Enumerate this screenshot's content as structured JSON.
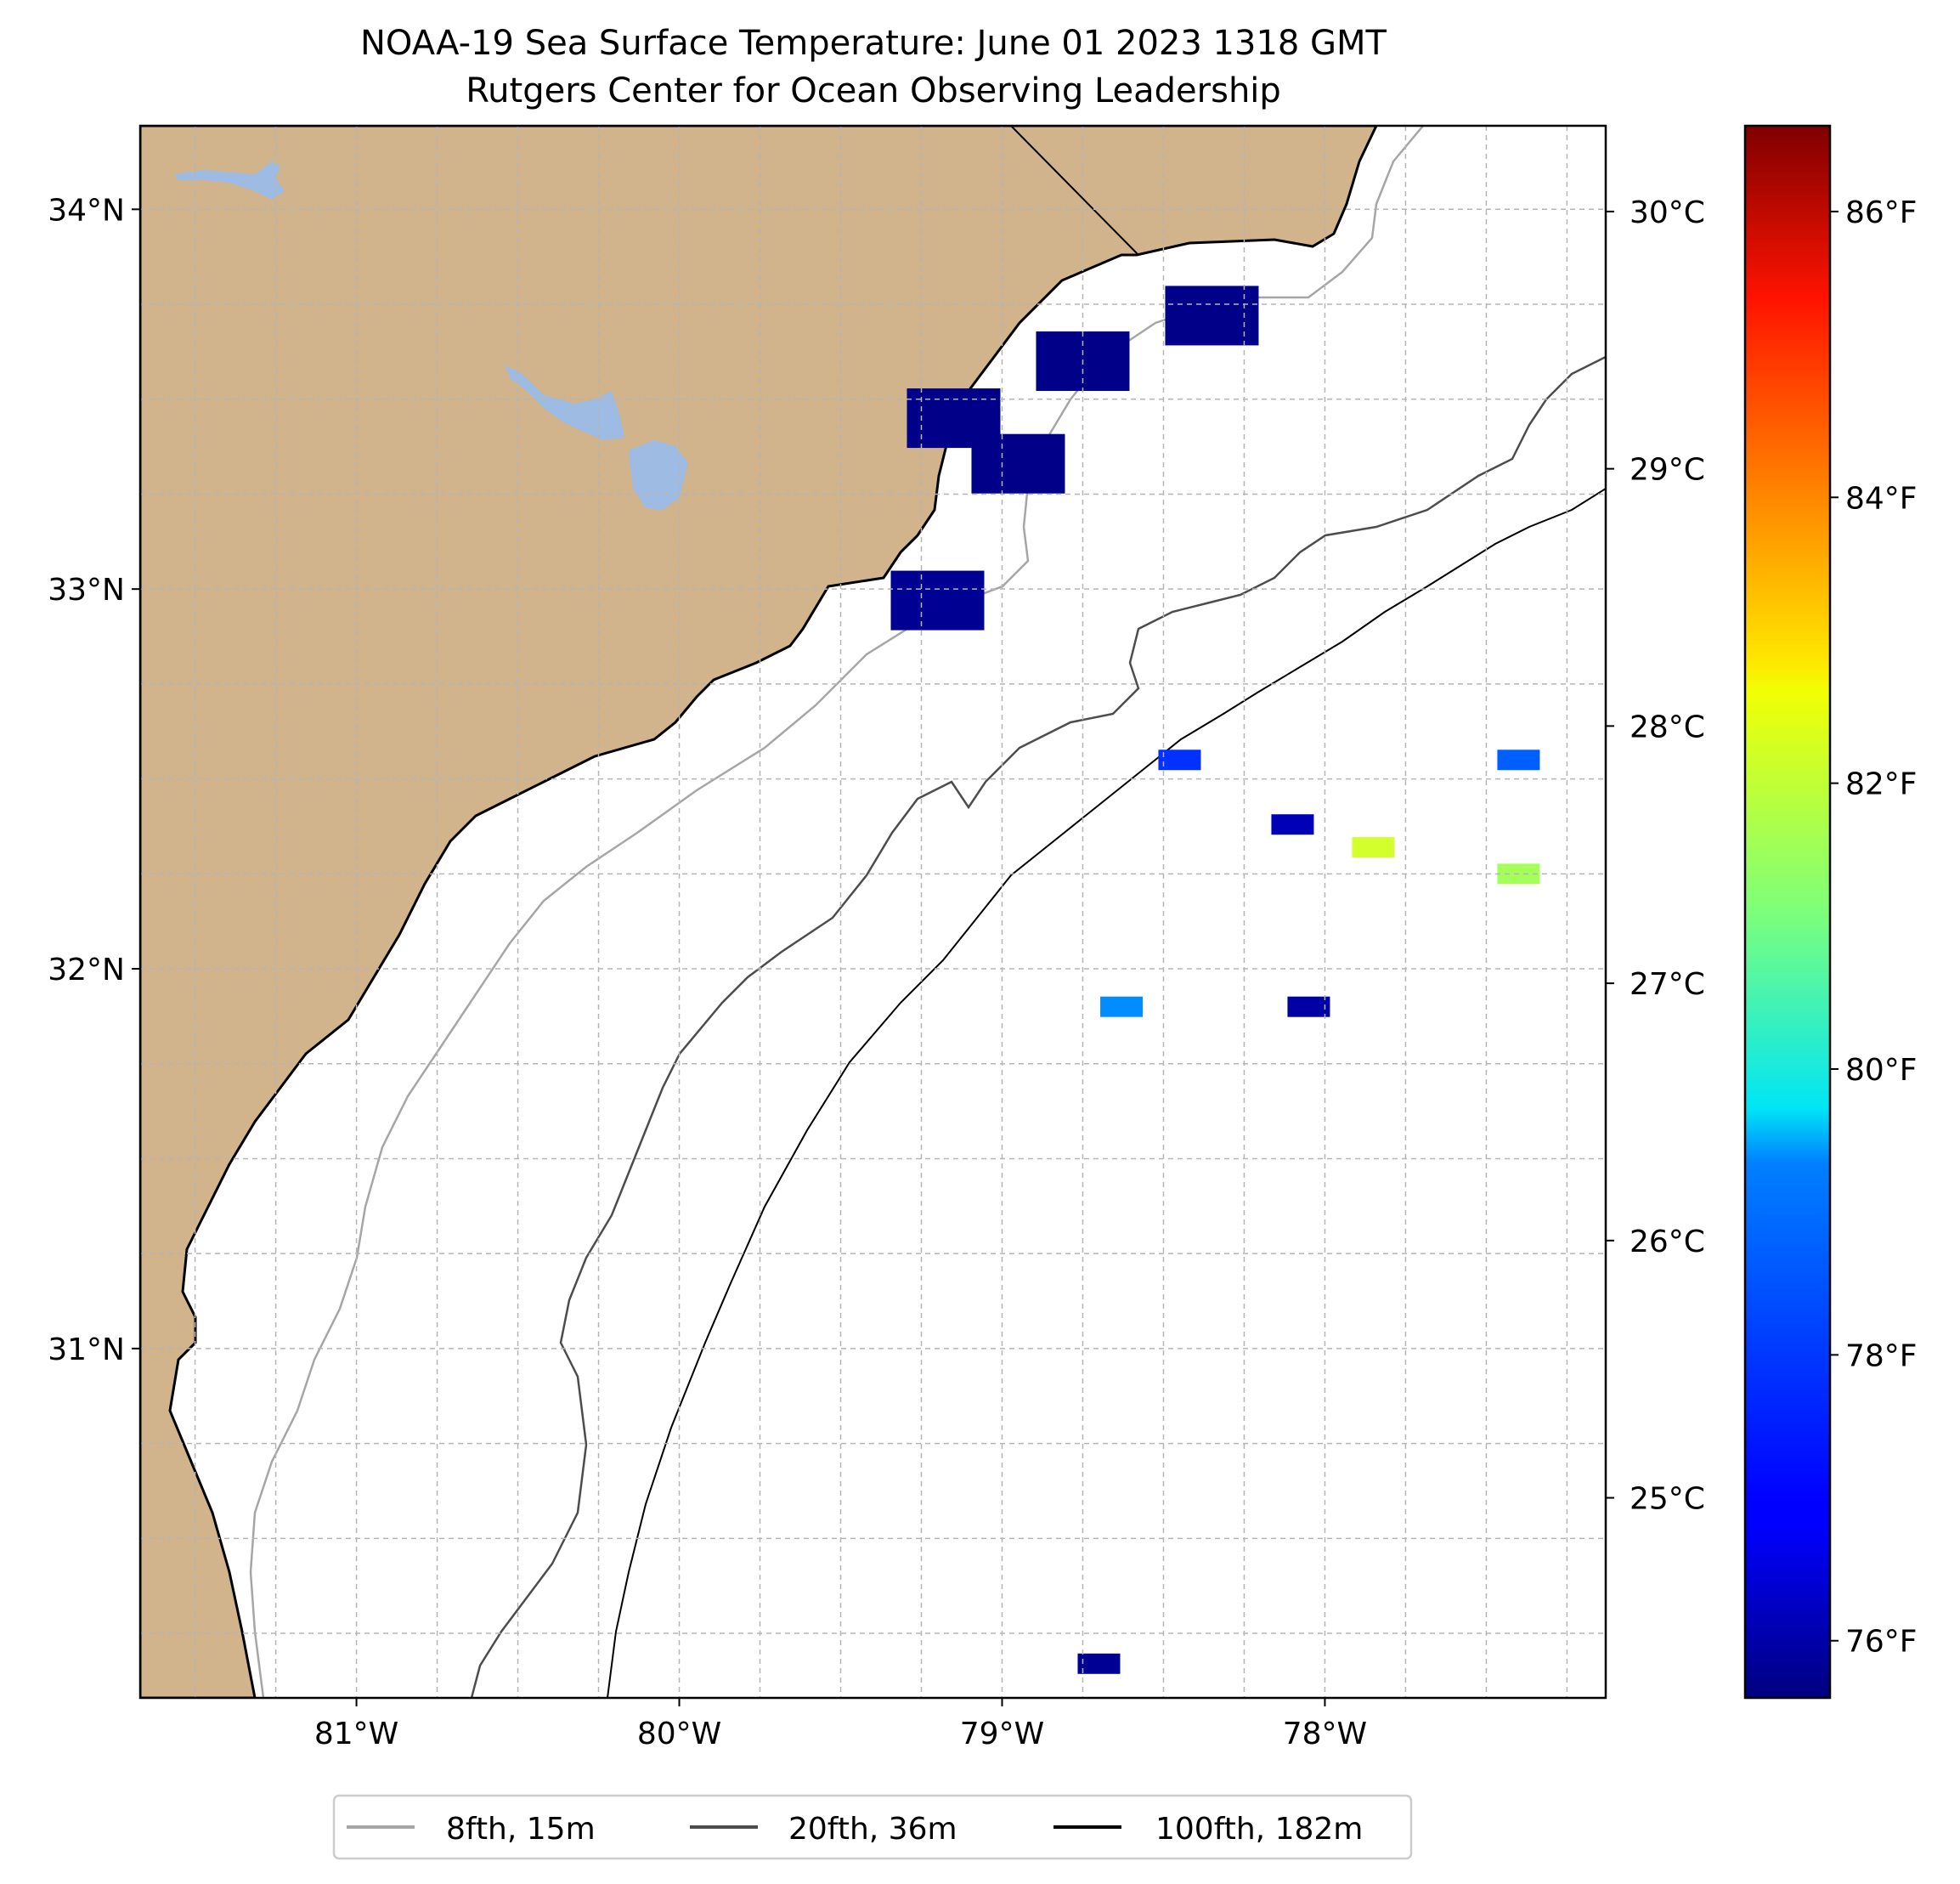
{
  "title": {
    "line1": "NOAA-19 Sea Surface Temperature: June 01 2023 1318 GMT",
    "line2": "Rutgers Center for Ocean Observing Leadership"
  },
  "map": {
    "lon_range": [
      -81.67,
      -77.13
    ],
    "lat_range": [
      30.08,
      34.22
    ],
    "lat_ticks": [
      {
        "value": 34,
        "label": "34°N"
      },
      {
        "value": 33,
        "label": "33°N"
      },
      {
        "value": 32,
        "label": "32°N"
      },
      {
        "value": 31,
        "label": "31°N"
      }
    ],
    "lon_ticks": [
      {
        "value": -81,
        "label": "81°W"
      },
      {
        "value": -80,
        "label": "80°W"
      },
      {
        "value": -79,
        "label": "79°W"
      },
      {
        "value": -78,
        "label": "78°W"
      }
    ],
    "grid_style": "dashed",
    "grid_step_deg": 0.25,
    "colors": {
      "land": "#d2b48c",
      "lake": "#9dbbe3",
      "ocean": "#ffffff",
      "coast": "#000000",
      "grid": "#b5b5b5",
      "contour_8fth": "#a6a6a6",
      "contour_20fth": "#4d4d4d",
      "contour_100fth": "#000000"
    }
  },
  "colorbar": {
    "colormap": "jet",
    "celsius_ticks": [
      {
        "value": 30,
        "label": "30°C"
      },
      {
        "value": 29,
        "label": "29°C"
      },
      {
        "value": 28,
        "label": "28°C"
      },
      {
        "value": 27,
        "label": "27°C"
      },
      {
        "value": 26,
        "label": "26°C"
      },
      {
        "value": 25,
        "label": "25°C"
      }
    ],
    "fahrenheit_ticks": [
      {
        "value": 86,
        "label": "86°F"
      },
      {
        "value": 84,
        "label": "84°F"
      },
      {
        "value": 82,
        "label": "82°F"
      },
      {
        "value": 80,
        "label": "80°F"
      },
      {
        "value": 78,
        "label": "78°F"
      },
      {
        "value": 76,
        "label": "76°F"
      }
    ],
    "range_f": [
      75.6,
      86.6
    ]
  },
  "legend": {
    "placement": "bottom-center",
    "entries": [
      {
        "label": "8fth, 15m",
        "color": "#a6a6a6"
      },
      {
        "label": "20fth, 36m",
        "color": "#4d4d4d"
      },
      {
        "label": "100fth, 182m",
        "color": "#000000"
      }
    ]
  },
  "sst_patches": [
    {
      "lon": -78.35,
      "lat": 33.72,
      "temp_f": 75.7
    },
    {
      "lon": -78.75,
      "lat": 33.6,
      "temp_f": 75.7
    },
    {
      "lon": -79.15,
      "lat": 33.45,
      "temp_f": 75.7
    },
    {
      "lon": -78.95,
      "lat": 33.33,
      "temp_f": 75.7
    },
    {
      "lon": -79.2,
      "lat": 32.97,
      "temp_f": 75.8
    },
    {
      "lon": -78.45,
      "lat": 32.55,
      "temp_f": 77.5
    },
    {
      "lon": -77.4,
      "lat": 32.55,
      "temp_f": 78.0
    },
    {
      "lon": -78.1,
      "lat": 32.38,
      "temp_f": 76.2
    },
    {
      "lon": -77.85,
      "lat": 32.32,
      "temp_f": 82.0
    },
    {
      "lon": -77.4,
      "lat": 32.25,
      "temp_f": 81.5
    },
    {
      "lon": -78.63,
      "lat": 31.9,
      "temp_f": 78.5
    },
    {
      "lon": -78.05,
      "lat": 31.9,
      "temp_f": 76.0
    },
    {
      "lon": -78.7,
      "lat": 30.17,
      "temp_f": 75.8
    }
  ]
}
